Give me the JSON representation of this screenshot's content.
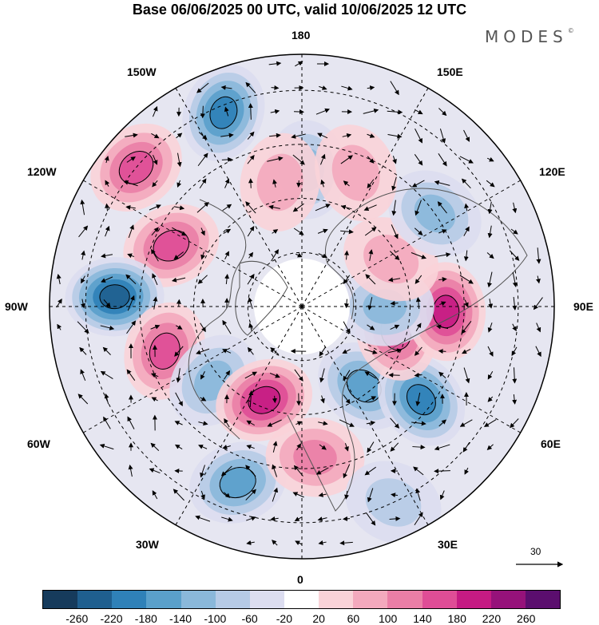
{
  "title": "Base 06/06/2025 00 UTC, valid 10/06/2025 12 UTC",
  "brand": {
    "name": "MODES",
    "mark": "©"
  },
  "longitude_labels": {
    "top": "180",
    "bottom": "0",
    "left": "90W",
    "right": "90E",
    "upper_left_1": "150W",
    "upper_left_2": "120W",
    "lower_left_1": "60W",
    "lower_left_2": "30W",
    "upper_right_1": "150E",
    "upper_right_2": "120E",
    "lower_right_1": "60E",
    "lower_right_2": "30E"
  },
  "reference_vector": {
    "value": "30"
  },
  "colorbar": {
    "colors": [
      "#163b5c",
      "#1f5f8f",
      "#2f81b8",
      "#5aa0cb",
      "#8ab8da",
      "#b6cbe6",
      "#dcddf0",
      "#ffffff",
      "#f9d3d8",
      "#f3a9bd",
      "#ea7ea6",
      "#df4d96",
      "#c51b83",
      "#96127a",
      "#5b0e6e"
    ],
    "tick_labels": [
      "-260",
      "-220",
      "-180",
      "-140",
      "-100",
      "-60",
      "-20",
      "20",
      "60",
      "100",
      "140",
      "180",
      "220",
      "260"
    ]
  },
  "anomaly_centers": [
    {
      "lat": 52,
      "lon": 178,
      "value": -110
    },
    {
      "lat": 32,
      "lon": -158,
      "value": -190
    },
    {
      "lat": 55,
      "lon": -170,
      "value": 90
    },
    {
      "lat": 30,
      "lon": -130,
      "value": 170
    },
    {
      "lat": 50,
      "lon": -115,
      "value": 140
    },
    {
      "lat": 38,
      "lon": -93,
      "value": -250
    },
    {
      "lat": 50,
      "lon": -72,
      "value": 160
    },
    {
      "lat": 58,
      "lon": -50,
      "value": -120
    },
    {
      "lat": 62,
      "lon": -22,
      "value": 200
    },
    {
      "lat": 38,
      "lon": -20,
      "value": -170
    },
    {
      "lat": 48,
      "lon": 5,
      "value": 120
    },
    {
      "lat": 30,
      "lon": 25,
      "value": -60
    },
    {
      "lat": 62,
      "lon": 38,
      "value": -160
    },
    {
      "lat": 48,
      "lon": 52,
      "value": -190
    },
    {
      "lat": 63,
      "lon": 75,
      "value": 160
    },
    {
      "lat": 50,
      "lon": 88,
      "value": 190
    },
    {
      "lat": 67,
      "lon": 90,
      "value": -130
    },
    {
      "lat": 62,
      "lon": 118,
      "value": 80
    },
    {
      "lat": 45,
      "lon": 125,
      "value": -120
    },
    {
      "lat": 50,
      "lon": 158,
      "value": 60
    }
  ]
}
